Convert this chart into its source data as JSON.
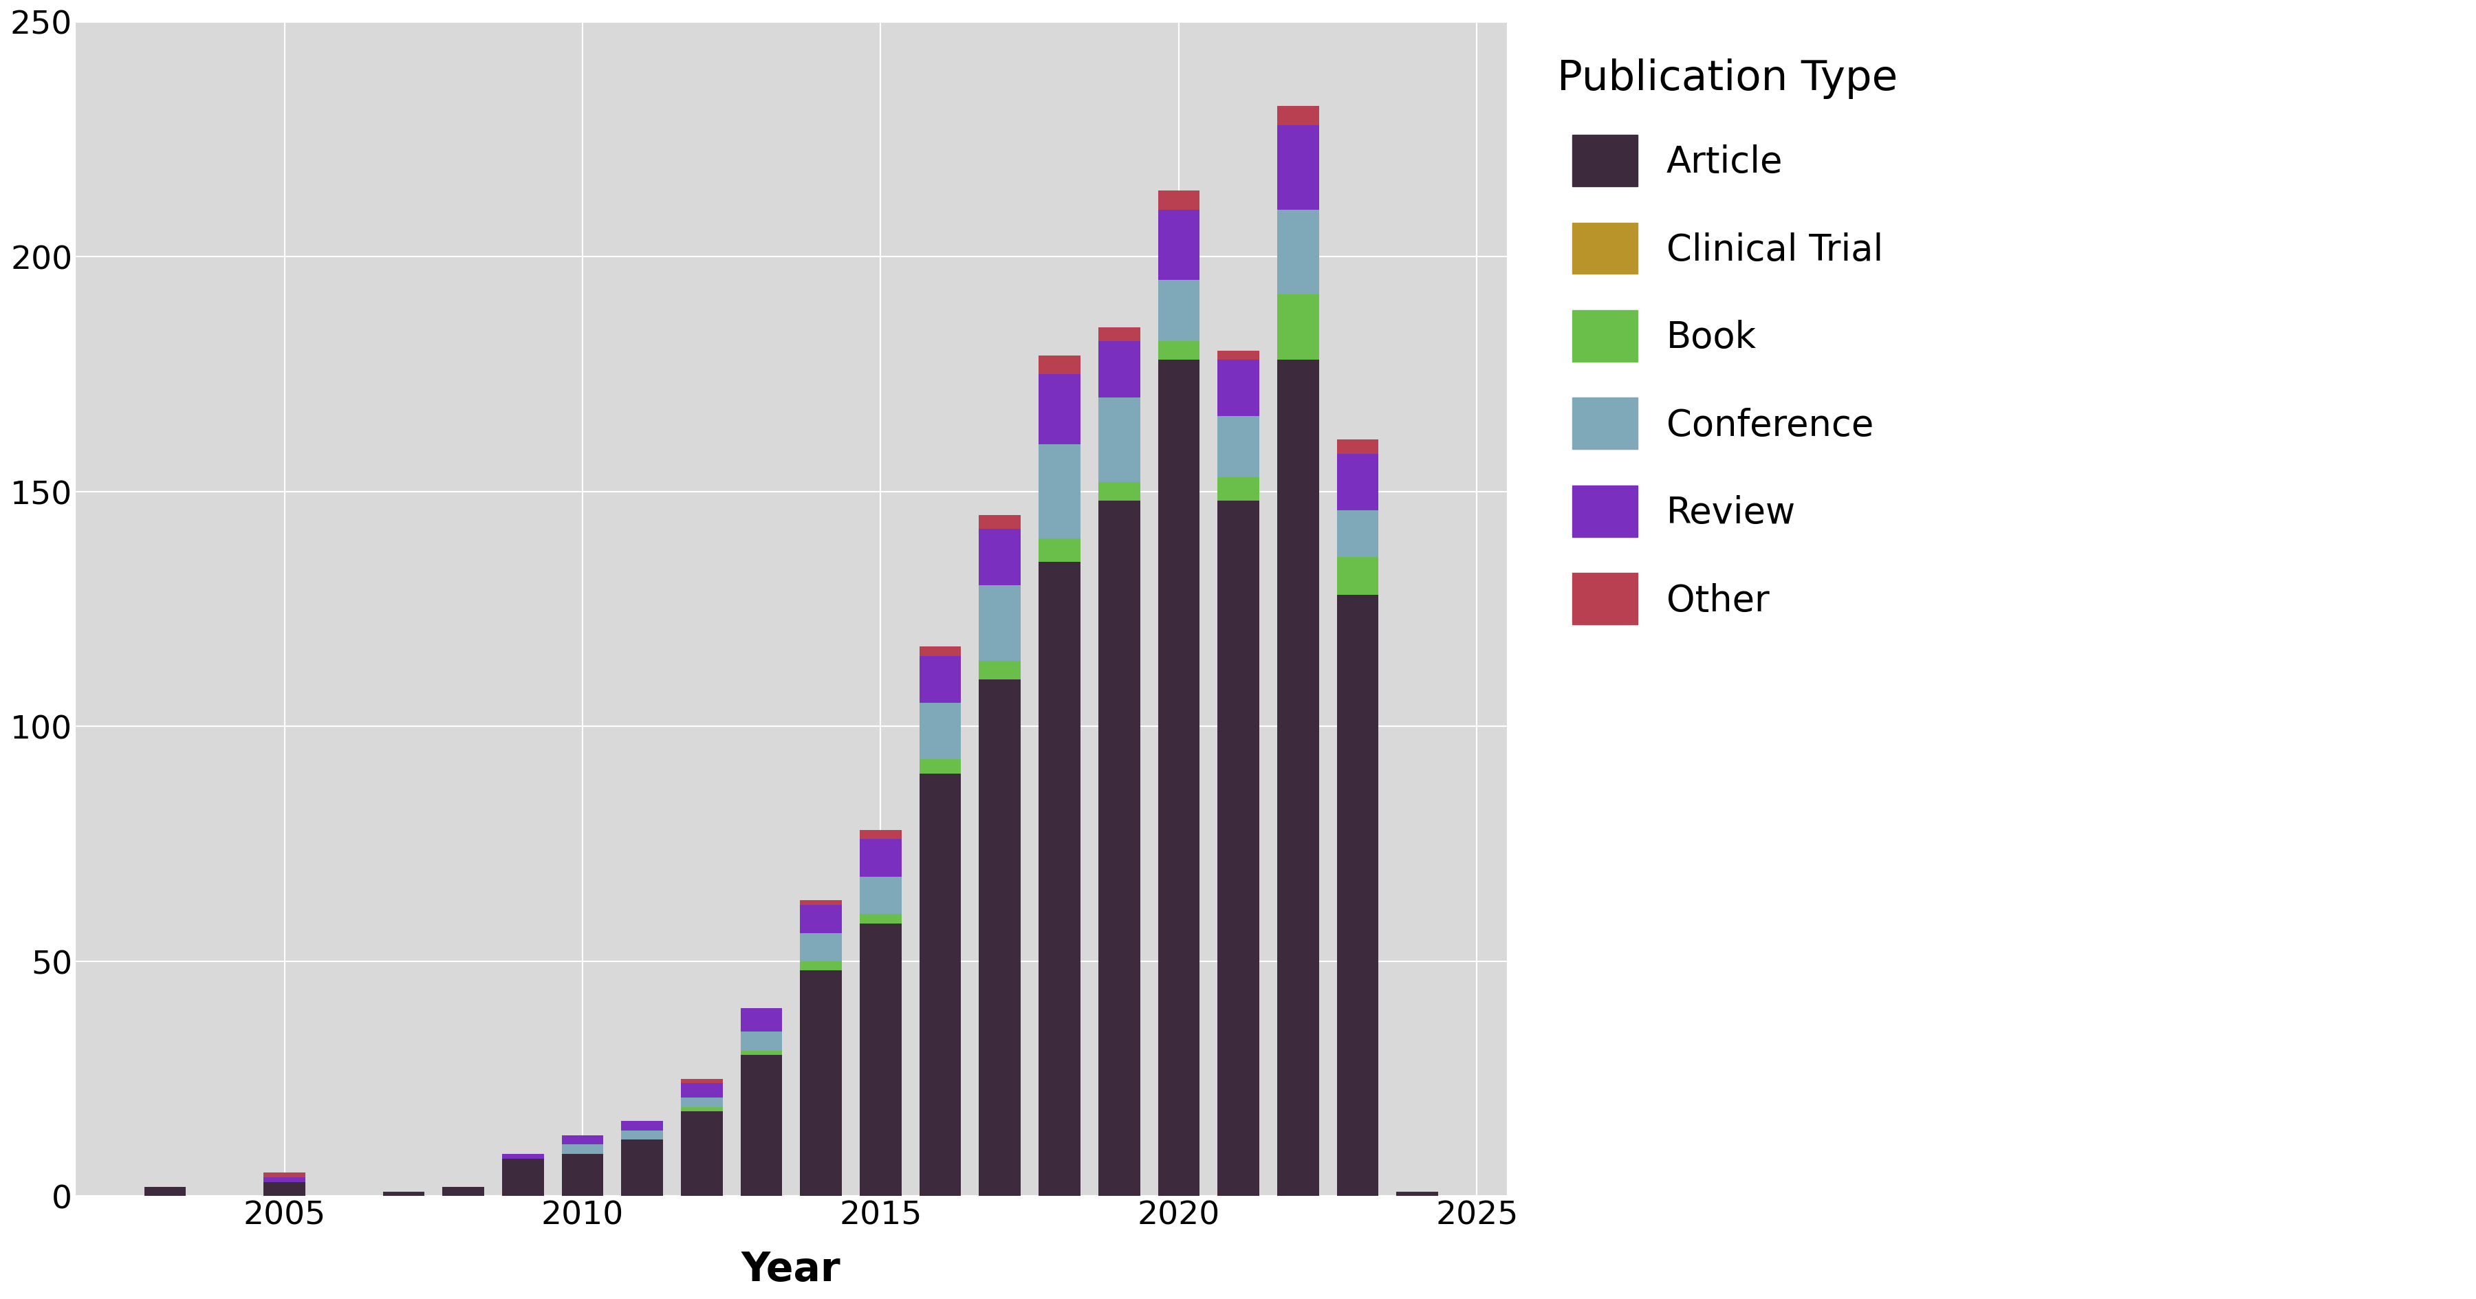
{
  "years": [
    2003,
    2004,
    2005,
    2006,
    2007,
    2008,
    2009,
    2010,
    2011,
    2012,
    2013,
    2014,
    2015,
    2016,
    2017,
    2018,
    2019,
    2020,
    2021,
    2022,
    2023,
    2024
  ],
  "Article": [
    2,
    0,
    3,
    0,
    1,
    2,
    8,
    9,
    12,
    18,
    30,
    48,
    58,
    90,
    110,
    135,
    148,
    178,
    148,
    178,
    128,
    1
  ],
  "ClinicalTrial": [
    0,
    0,
    0,
    0,
    0,
    0,
    0,
    0,
    0,
    0,
    0,
    0,
    0,
    0,
    0,
    0,
    0,
    0,
    0,
    0,
    0,
    0
  ],
  "Book": [
    0,
    0,
    0,
    0,
    0,
    0,
    0,
    0,
    0,
    1,
    1,
    2,
    2,
    3,
    4,
    5,
    4,
    4,
    5,
    14,
    8,
    0
  ],
  "Conference": [
    0,
    0,
    0,
    0,
    0,
    0,
    0,
    2,
    2,
    2,
    4,
    6,
    8,
    12,
    16,
    20,
    18,
    13,
    13,
    18,
    10,
    0
  ],
  "Review": [
    0,
    0,
    1,
    0,
    0,
    0,
    1,
    2,
    2,
    3,
    5,
    6,
    8,
    10,
    12,
    15,
    12,
    15,
    12,
    18,
    12,
    0
  ],
  "Other": [
    0,
    0,
    1,
    0,
    0,
    0,
    0,
    0,
    0,
    1,
    0,
    1,
    2,
    2,
    3,
    4,
    3,
    4,
    2,
    4,
    3,
    0
  ],
  "colors": {
    "Article": "#3d2b3d",
    "ClinicalTrial": "#b8942a",
    "Book": "#6abf4b",
    "Conference": "#7fa8b8",
    "Review": "#7b2fbe",
    "Other": "#b94050"
  },
  "legend_labels": [
    "Article",
    "Clinical Trial",
    "Book",
    "Conference",
    "Review",
    "Other"
  ],
  "legend_keys": [
    "Article",
    "ClinicalTrial",
    "Book",
    "Conference",
    "Review",
    "Other"
  ],
  "xlabel": "Year",
  "ylabel": "",
  "ylim": [
    0,
    250
  ],
  "yticks": [
    0,
    50,
    100,
    150,
    200,
    250
  ],
  "title": "Publication Type",
  "background_color": "#d9d9d9",
  "figure_background": "#ffffff",
  "bar_width": 0.7,
  "xlim": [
    2001.5,
    2025.5
  ]
}
